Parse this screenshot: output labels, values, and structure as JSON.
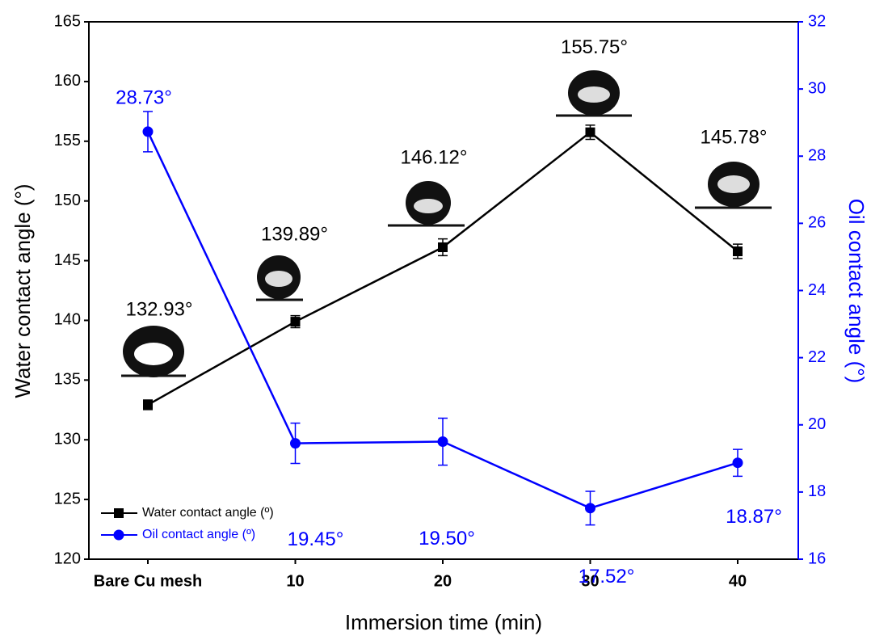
{
  "chart_data": {
    "type": "line",
    "x_label": "Immersion time (min)",
    "y_label": "Water contact angle (°)",
    "y2_label": "Oil contact angle (°)",
    "categories": [
      "Bare Cu mesh",
      "10",
      "20",
      "30",
      "40"
    ],
    "ylim": [
      120,
      165
    ],
    "yticks": [
      120,
      125,
      130,
      135,
      140,
      145,
      150,
      155,
      160,
      165
    ],
    "y2lim": [
      16,
      32
    ],
    "y2ticks": [
      16,
      18,
      20,
      22,
      24,
      26,
      28,
      30,
      32
    ],
    "legend": "lower left",
    "series": [
      {
        "name": "Water contact angle (º)",
        "color": "#000000",
        "marker": "square",
        "values": [
          132.93,
          139.89,
          146.12,
          155.75,
          145.78
        ],
        "errors": [
          0.4,
          0.5,
          0.7,
          0.6,
          0.6
        ],
        "value_labels": [
          "132.93°",
          "139.89°",
          "146.12°",
          "155.75°",
          "145.78°"
        ]
      },
      {
        "name": "Oil contact angle (º)",
        "color": "#0000ff",
        "marker": "circle",
        "axis": "y2",
        "values": [
          28.73,
          19.45,
          19.5,
          17.52,
          18.87
        ],
        "errors": [
          0.6,
          0.6,
          0.7,
          0.5,
          0.4
        ],
        "value_labels": [
          "28.73°",
          "19.45°",
          "19.50°",
          "17.52°",
          "18.87°"
        ]
      }
    ]
  }
}
